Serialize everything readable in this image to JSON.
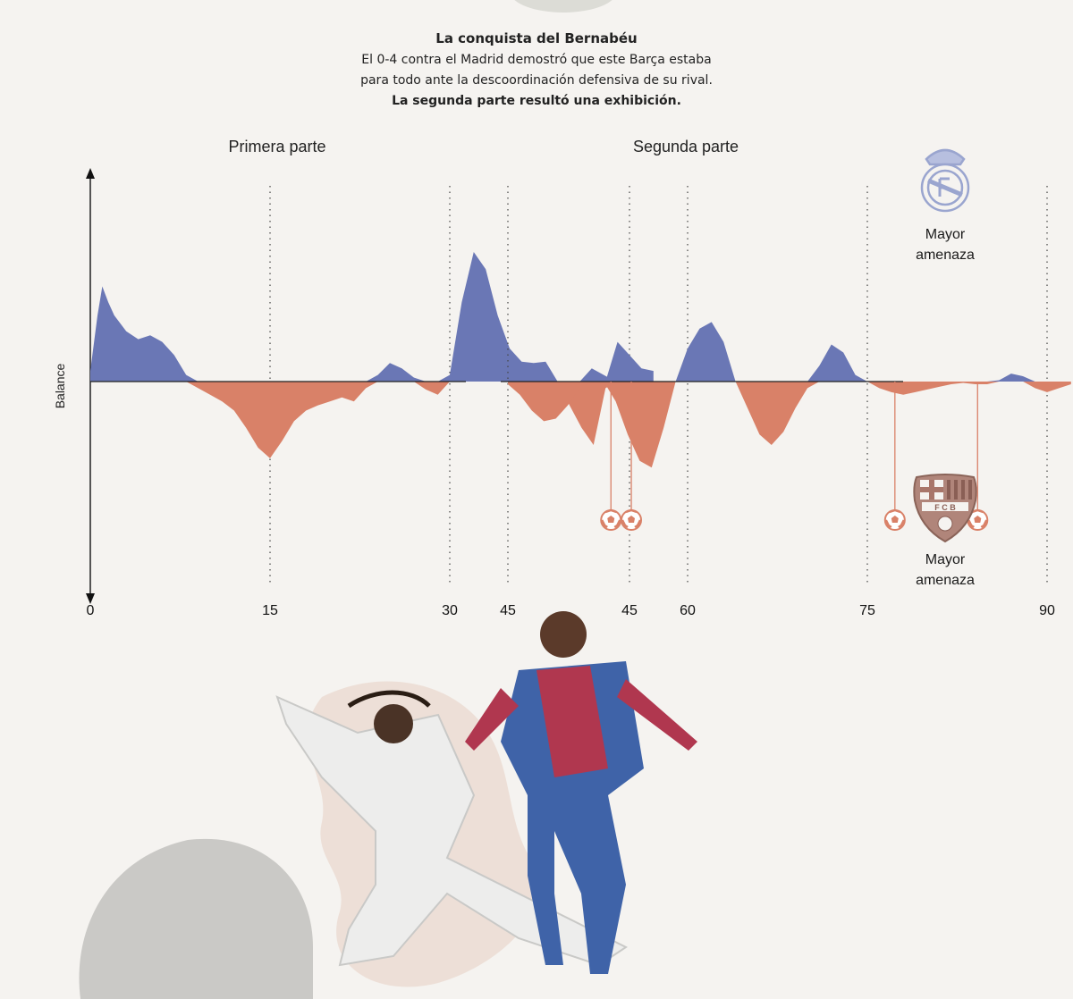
{
  "header": {
    "title": "La conquista del Bernabéu",
    "line1": "El 0-4 contra el Madrid demostró que este Barça estaba",
    "line2": "para todo ante la descoordinación defensiva de su rival.",
    "line3": "La segunda parte resultó una exhibición."
  },
  "legend": {
    "top_label_1": "Mayor",
    "top_label_2": "amenaza",
    "bottom_label_1": "Mayor",
    "bottom_label_2": "amenaza",
    "top_crest": "real-madrid-crest",
    "bottom_crest": "fc-barcelona-crest"
  },
  "chart_data": {
    "type": "area",
    "ylabel": "Balance",
    "ylim": [
      -1,
      1
    ],
    "positive_color": "#6a77b5",
    "negative_color": "#d98168",
    "goal_color": "#d98168",
    "panels": [
      {
        "title": "Primera parte",
        "xlim": [
          0,
          47
        ],
        "ticks": [
          0,
          15,
          30,
          45
        ],
        "gridlines": [
          15,
          30,
          45
        ],
        "x": [
          0,
          0.6,
          1,
          1.5,
          2,
          3,
          4,
          5,
          6,
          7,
          8,
          9,
          10,
          11,
          12,
          13,
          14,
          15,
          16,
          17,
          18,
          19,
          20,
          21,
          22,
          23,
          24,
          25,
          26,
          27,
          28,
          29,
          30,
          31,
          32,
          33,
          34,
          35,
          36,
          37,
          38,
          39,
          40,
          41,
          42,
          43,
          44,
          45,
          46,
          47
        ],
        "values": [
          0.08,
          0.5,
          0.72,
          0.6,
          0.5,
          0.38,
          0.32,
          0.35,
          0.3,
          0.2,
          0.05,
          -0.05,
          -0.1,
          -0.15,
          -0.22,
          -0.35,
          -0.5,
          -0.58,
          -0.45,
          -0.3,
          -0.22,
          -0.18,
          -0.15,
          -0.12,
          -0.15,
          -0.05,
          0.05,
          0.14,
          0.1,
          0.03,
          -0.06,
          -0.1,
          0.05,
          0.6,
          0.98,
          0.85,
          0.5,
          0.25,
          0.15,
          0.14,
          0.15,
          0.0,
          -0.18,
          -0.35,
          -0.48,
          -0.05,
          0.3,
          0.2,
          0.1,
          0.08
        ]
      },
      {
        "title": "Segunda parte",
        "xlim": [
          45,
          93
        ],
        "ticks": [
          45,
          60,
          75,
          90
        ],
        "gridlines": [
          45,
          60,
          75,
          90
        ],
        "x": [
          45,
          46,
          47,
          48,
          49,
          50,
          51,
          52,
          53,
          54,
          55,
          56,
          57,
          58,
          59,
          60,
          61,
          62,
          63,
          64,
          65,
          66,
          67,
          68,
          69,
          70,
          71,
          72,
          73,
          74,
          75,
          76,
          77,
          78,
          79,
          80,
          81,
          82,
          83,
          84,
          85,
          86,
          87,
          88,
          89,
          90,
          91,
          92
        ],
        "values": [
          -0.02,
          -0.1,
          -0.22,
          -0.3,
          -0.28,
          -0.18,
          -0.05,
          0.1,
          0.05,
          -0.15,
          -0.4,
          -0.6,
          -0.65,
          -0.35,
          0.0,
          0.25,
          0.4,
          0.45,
          0.3,
          0.0,
          -0.2,
          -0.4,
          -0.48,
          -0.38,
          -0.2,
          -0.05,
          0.12,
          0.28,
          0.22,
          0.05,
          0.0,
          -0.05,
          -0.08,
          -0.1,
          -0.08,
          -0.06,
          -0.04,
          -0.02,
          -0.01,
          -0.02,
          -0.02,
          0.01,
          0.06,
          0.04,
          -0.05,
          -0.08,
          -0.05,
          -0.02
        ]
      }
    ],
    "goals": [
      53.6,
      55.3,
      77.3,
      84.2
    ]
  }
}
